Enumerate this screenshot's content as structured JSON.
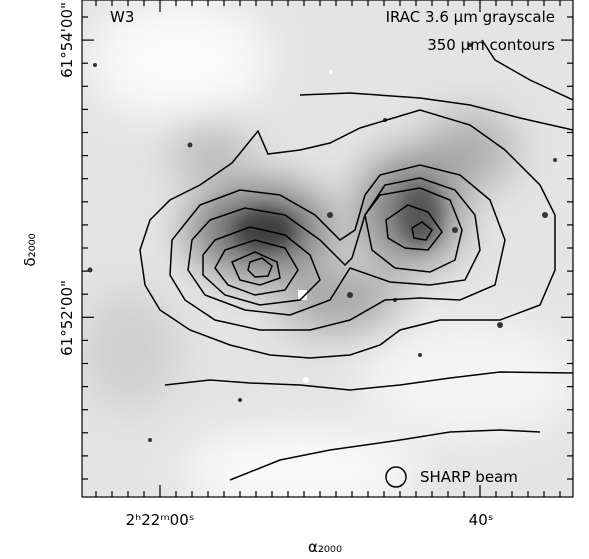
{
  "figure": {
    "annotations": {
      "field": "W3",
      "image": "IRAC 3.6 μm grayscale",
      "contours": "350 μm contours",
      "beam": "SHARP beam"
    },
    "x_axis": {
      "label": "α₂₀₀₀",
      "ticks": [
        "2ʰ22ᵐ00ˢ",
        "40ˢ"
      ]
    },
    "y_axis": {
      "label": "δ₂₀₀₀",
      "ticks": [
        "61°54'00\"",
        "61°52'00\""
      ]
    }
  }
}
